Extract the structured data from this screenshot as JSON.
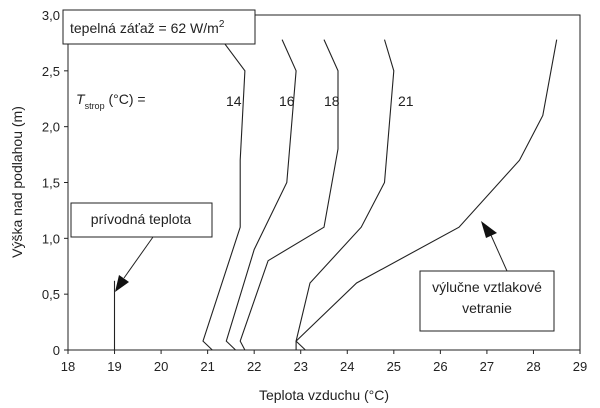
{
  "chart_data": {
    "type": "line",
    "xlabel": "Teplota vzduchu (°C)",
    "ylabel": "Výška nad podlahou (m)",
    "xlim": [
      18,
      29
    ],
    "ylim": [
      0,
      3.0
    ],
    "x_ticks": [
      "18",
      "19",
      "20",
      "21",
      "22",
      "23",
      "24",
      "25",
      "26",
      "27",
      "28",
      "29"
    ],
    "y_ticks": [
      "0",
      "0,5",
      "1,0",
      "1,5",
      "2,0",
      "2,5",
      "3,0"
    ],
    "grid": false,
    "series": [
      {
        "name": "14",
        "points": [
          [
            21.1,
            0.0
          ],
          [
            20.9,
            0.08
          ],
          [
            21.7,
            1.1
          ],
          [
            21.7,
            1.7
          ],
          [
            21.8,
            2.5
          ],
          [
            21.3,
            2.78
          ]
        ]
      },
      {
        "name": "16",
        "points": [
          [
            21.6,
            0.0
          ],
          [
            21.4,
            0.08
          ],
          [
            22.0,
            0.9
          ],
          [
            22.7,
            1.5
          ],
          [
            22.9,
            2.5
          ],
          [
            22.6,
            2.78
          ]
        ]
      },
      {
        "name": "18",
        "points": [
          [
            21.8,
            0.0
          ],
          [
            21.7,
            0.08
          ],
          [
            22.3,
            0.8
          ],
          [
            23.5,
            1.1
          ],
          [
            23.8,
            1.8
          ],
          [
            23.8,
            2.5
          ],
          [
            23.5,
            2.78
          ]
        ]
      },
      {
        "name": "21",
        "points": [
          [
            22.9,
            0.0
          ],
          [
            22.9,
            0.08
          ],
          [
            23.2,
            0.6
          ],
          [
            24.3,
            1.1
          ],
          [
            24.8,
            1.5
          ],
          [
            25.0,
            2.5
          ],
          [
            24.8,
            2.78
          ]
        ]
      },
      {
        "name": "výlučne vztlakové vetranie",
        "points": [
          [
            23.1,
            0.0
          ],
          [
            22.9,
            0.08
          ],
          [
            24.2,
            0.6
          ],
          [
            26.4,
            1.1
          ],
          [
            27.7,
            1.7
          ],
          [
            28.2,
            2.1
          ],
          [
            28.5,
            2.78
          ]
        ]
      },
      {
        "name": "prívodná teplota",
        "points": [
          [
            19.0,
            0.0
          ],
          [
            19.0,
            0.62
          ]
        ]
      }
    ],
    "curve_labels": {
      "prefix_symbol": "T",
      "prefix_sub": "strop",
      "prefix_unit": " (°C) =",
      "values": [
        "14",
        "16",
        "18",
        "21"
      ]
    },
    "annotations": {
      "heat_load_main": "tepelná záťaž = 62 W/m",
      "heat_load_sup": "2",
      "supply_temp": "prívodná teplota",
      "buoyancy_line1": "výlučne vztlakové",
      "buoyancy_line2": "vetranie"
    }
  }
}
